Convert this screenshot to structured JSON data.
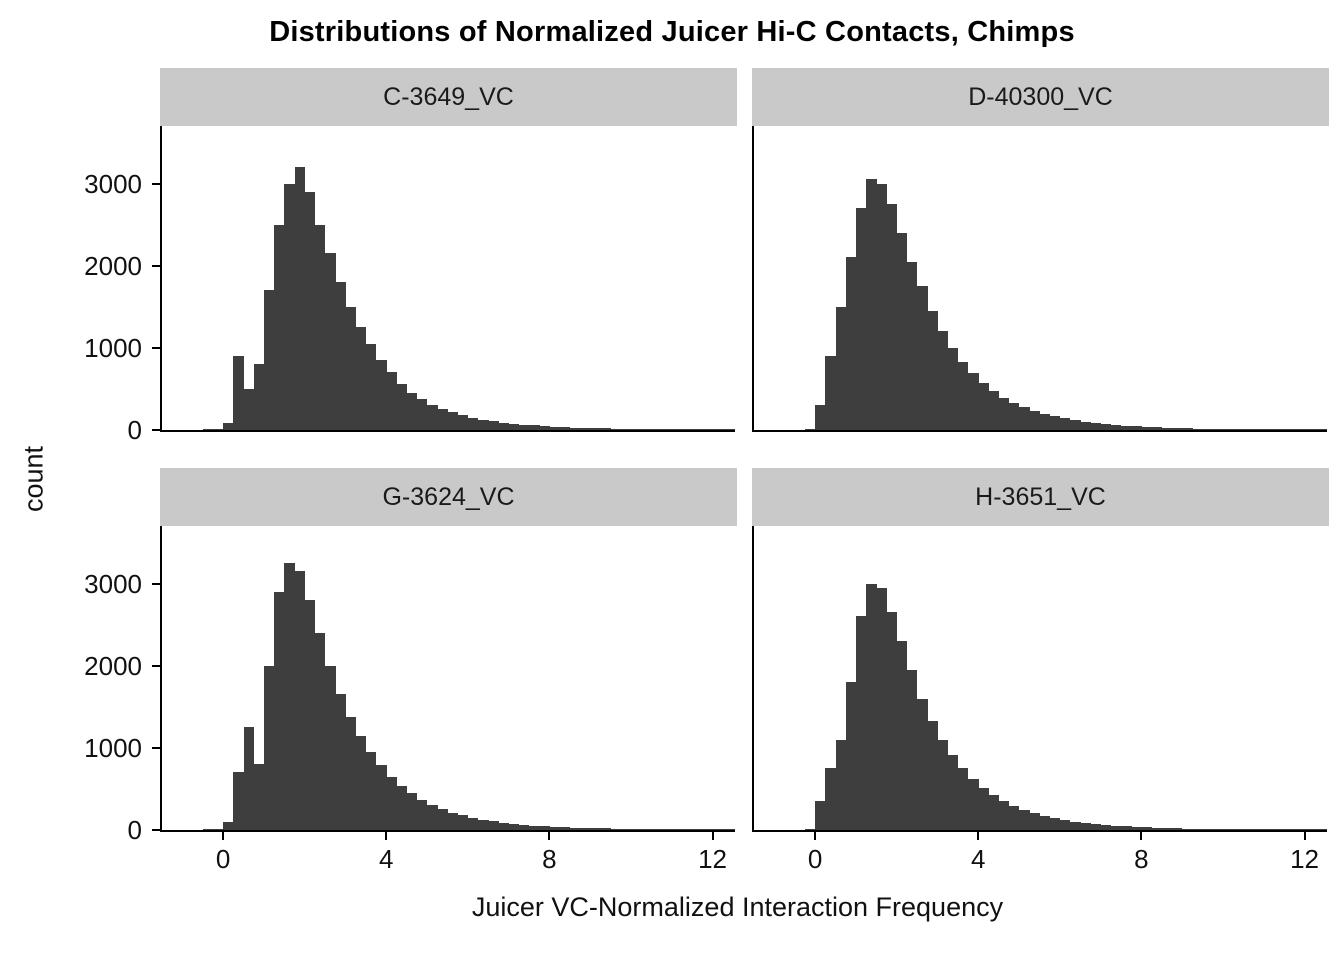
{
  "title": "Distributions of Normalized Juicer Hi-C Contacts, Chimps",
  "chart_data": {
    "type": "bar",
    "subtype": "faceted-histogram",
    "xlabel": "Juicer VC-Normalized Interaction Frequency",
    "ylabel": "count",
    "x_ticks": [
      0,
      4,
      8,
      12
    ],
    "y_ticks": [
      0,
      1000,
      2000,
      3000
    ],
    "x_domain": [
      -1.5,
      12.6
    ],
    "y_domain": [
      0,
      3700
    ],
    "grid": false,
    "legend": "none",
    "bar_color": "#3E3E3E",
    "strip_bg": "#C9C9C9",
    "axis_color": "#000000",
    "bin_start": -0.5,
    "bin_width": 0.25,
    "facets": [
      {
        "label": "C-3649_VC",
        "counts": [
          3,
          8,
          80,
          900,
          500,
          800,
          1700,
          2500,
          3000,
          3200,
          2900,
          2500,
          2150,
          1800,
          1500,
          1250,
          1050,
          850,
          700,
          560,
          450,
          380,
          310,
          260,
          215,
          180,
          150,
          125,
          105,
          90,
          78,
          66,
          56,
          48,
          42,
          36,
          30,
          26,
          23,
          20,
          17,
          15,
          13,
          11,
          10,
          9,
          8,
          7,
          6,
          5,
          5,
          4,
          4,
          3
        ]
      },
      {
        "label": "D-40300_VC",
        "counts": [
          0,
          2,
          300,
          900,
          1500,
          2100,
          2700,
          3050,
          3000,
          2750,
          2400,
          2050,
          1750,
          1450,
          1200,
          1000,
          830,
          690,
          570,
          470,
          390,
          330,
          275,
          230,
          195,
          165,
          140,
          118,
          100,
          85,
          72,
          62,
          53,
          45,
          39,
          33,
          29,
          25,
          21,
          18,
          16,
          14,
          12,
          10,
          9,
          8,
          7,
          6,
          5,
          5,
          4,
          4,
          3,
          3
        ]
      },
      {
        "label": "G-3624_VC",
        "counts": [
          3,
          8,
          100,
          700,
          1250,
          800,
          2000,
          2900,
          3250,
          3150,
          2800,
          2400,
          2000,
          1650,
          1380,
          1150,
          950,
          790,
          650,
          540,
          445,
          370,
          305,
          255,
          212,
          178,
          148,
          124,
          104,
          88,
          74,
          63,
          54,
          46,
          39,
          34,
          29,
          25,
          22,
          19,
          16,
          14,
          12,
          11,
          9,
          8,
          7,
          6,
          6,
          5,
          4,
          4,
          3,
          3
        ]
      },
      {
        "label": "H-3651_VC",
        "counts": [
          0,
          2,
          350,
          750,
          1100,
          1800,
          2600,
          3000,
          2950,
          2650,
          2300,
          1950,
          1600,
          1330,
          1100,
          910,
          750,
          620,
          515,
          425,
          355,
          295,
          245,
          205,
          172,
          145,
          122,
          103,
          87,
          74,
          63,
          54,
          46,
          39,
          34,
          29,
          25,
          21,
          18,
          16,
          14,
          12,
          10,
          9,
          8,
          7,
          6,
          5,
          5,
          4,
          4,
          3,
          3,
          3
        ]
      }
    ]
  }
}
